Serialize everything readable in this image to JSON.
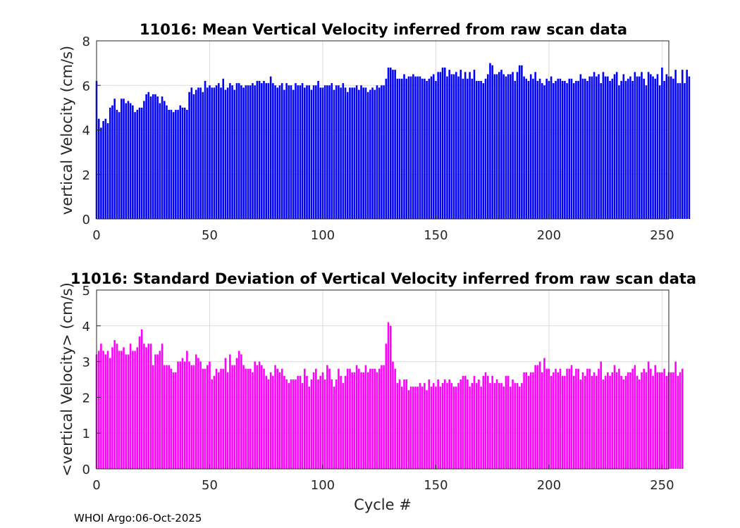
{
  "chart_data": [
    {
      "type": "bar",
      "title": "11016: Mean Vertical Velocity inferred from raw scan data",
      "xlabel": "",
      "ylabel": "vertical Velocity (cm/s)",
      "xlim": [
        0,
        253
      ],
      "ylim": [
        0,
        8
      ],
      "xticks": [
        "0",
        "50",
        "100",
        "150",
        "200",
        "250"
      ],
      "yticks": [
        "0",
        "2",
        "4",
        "6",
        "8"
      ],
      "grid": true,
      "color": "#0000FF",
      "values": [
        6.2,
        4.5,
        4.1,
        4.4,
        4.5,
        4.3,
        5.0,
        5.1,
        5.4,
        4.9,
        4.8,
        5.4,
        5.4,
        5.2,
        5.3,
        5.2,
        5.1,
        4.8,
        4.9,
        5.0,
        5.0,
        5.3,
        5.6,
        5.7,
        5.5,
        5.6,
        5.6,
        5.5,
        5.2,
        5.5,
        5.3,
        5.1,
        4.9,
        4.9,
        4.8,
        4.9,
        4.9,
        5.1,
        5.0,
        5.0,
        4.9,
        5.7,
        5.9,
        5.6,
        5.8,
        5.9,
        5.9,
        5.7,
        6.2,
        5.9,
        6.0,
        5.9,
        5.9,
        6.0,
        6.1,
        5.9,
        6.3,
        5.8,
        5.9,
        6.1,
        6.0,
        5.8,
        6.1,
        6.1,
        6.0,
        5.9,
        6.0,
        6.0,
        6.0,
        6.1,
        6.0,
        6.2,
        6.2,
        6.1,
        6.2,
        6.1,
        6.1,
        6.4,
        6.1,
        6.0,
        5.9,
        6.0,
        6.1,
        5.8,
        6.1,
        6.0,
        6.0,
        5.8,
        6.1,
        6.0,
        6.0,
        6.1,
        5.9,
        6.0,
        6.0,
        5.8,
        6.0,
        6.0,
        6.2,
        5.9,
        5.9,
        6.0,
        6.0,
        6.0,
        6.1,
        5.8,
        6.0,
        6.0,
        5.9,
        6.1,
        5.9,
        5.7,
        5.9,
        5.9,
        5.9,
        6.0,
        5.8,
        6.0,
        5.9,
        5.9,
        5.7,
        5.8,
        5.9,
        5.8,
        6.0,
        5.9,
        6.0,
        6.0,
        6.3,
        6.8,
        6.8,
        6.7,
        6.7,
        6.3,
        6.3,
        6.3,
        6.5,
        6.3,
        6.4,
        6.4,
        6.5,
        6.4,
        6.4,
        6.4,
        6.3,
        6.3,
        6.2,
        6.3,
        6.4,
        6.5,
        6.2,
        6.6,
        6.6,
        6.8,
        6.8,
        6.4,
        6.7,
        6.5,
        6.5,
        6.6,
        6.4,
        6.7,
        6.3,
        6.6,
        6.3,
        6.6,
        6.3,
        6.7,
        6.2,
        6.2,
        6.2,
        6.1,
        6.3,
        6.5,
        7.0,
        6.9,
        6.5,
        6.5,
        6.6,
        6.7,
        6.5,
        6.4,
        6.5,
        6.5,
        6.6,
        6.2,
        6.6,
        6.9,
        6.9,
        6.4,
        6.3,
        6.2,
        6.5,
        6.3,
        6.6,
        6.2,
        6.3,
        6.1,
        6.0,
        6.3,
        6.2,
        6.4,
        6.1,
        6.2,
        6.3,
        6.3,
        6.2,
        6.2,
        6.1,
        6.3,
        6.3,
        6.1,
        6.2,
        6.2,
        6.5,
        6.3,
        6.3,
        6.2,
        6.4,
        6.4,
        6.6,
        6.4,
        6.5,
        6.1,
        6.6,
        6.4,
        6.4,
        6.2,
        6.3,
        6.5,
        6.6,
        6.0,
        6.2,
        6.5,
        6.2,
        6.3,
        6.4,
        6.2,
        6.6,
        6.4,
        6.4,
        6.6,
        6.3,
        6.0,
        6.6,
        6.5,
        6.4,
        6.3,
        6.5,
        6.0,
        6.8,
        6.2,
        6.5,
        6.4,
        6.4,
        6.3,
        6.7,
        6.1,
        6.1,
        6.7,
        6.1,
        6.7,
        6.4
      ],
      "x_start": 0
    },
    {
      "type": "bar",
      "title": "11016: Standard Deviation of Vertical Velocity inferred from raw scan data",
      "xlabel": "Cycle #",
      "ylabel": "<vertical Velocity> (cm/s)",
      "xlim": [
        0,
        253
      ],
      "ylim": [
        0,
        5
      ],
      "xticks": [
        "0",
        "50",
        "100",
        "150",
        "200",
        "250"
      ],
      "yticks": [
        "0",
        "1",
        "2",
        "3",
        "4",
        "5"
      ],
      "grid": true,
      "color": "#FF00FF",
      "values": [
        3.2,
        3.3,
        3.5,
        3.3,
        3.2,
        3.3,
        3.1,
        3.4,
        3.6,
        3.5,
        3.3,
        3.3,
        3.4,
        3.2,
        3.2,
        3.5,
        3.3,
        3.3,
        3.4,
        3.7,
        3.9,
        3.5,
        3.4,
        3.5,
        3.5,
        2.9,
        3.2,
        3.2,
        3.3,
        3.5,
        2.9,
        2.9,
        2.9,
        2.8,
        2.7,
        2.7,
        3.0,
        3.0,
        3.1,
        3.0,
        3.3,
        3.0,
        2.9,
        2.9,
        3.2,
        3.1,
        3.0,
        2.8,
        2.8,
        2.9,
        3.0,
        2.5,
        2.6,
        2.8,
        2.7,
        2.8,
        2.8,
        3.1,
        2.7,
        3.2,
        2.9,
        2.9,
        3.1,
        3.3,
        3.2,
        2.9,
        2.8,
        2.8,
        2.8,
        2.7,
        3.0,
        2.9,
        3.0,
        2.9,
        2.8,
        2.6,
        2.5,
        2.7,
        2.6,
        2.9,
        2.8,
        2.7,
        2.8,
        2.6,
        2.5,
        2.4,
        2.5,
        2.5,
        2.5,
        2.6,
        2.6,
        2.4,
        2.8,
        2.6,
        2.3,
        2.5,
        2.7,
        2.8,
        2.5,
        2.6,
        2.7,
        2.5,
        2.9,
        2.8,
        2.5,
        2.3,
        2.5,
        2.8,
        2.6,
        2.4,
        2.6,
        2.8,
        2.8,
        2.7,
        2.7,
        2.9,
        2.8,
        2.7,
        2.7,
        2.9,
        2.7,
        2.8,
        2.8,
        2.8,
        2.7,
        2.8,
        2.9,
        2.9,
        3.5,
        4.1,
        4.0,
        3.0,
        2.8,
        2.4,
        2.5,
        2.3,
        2.5,
        2.5,
        2.2,
        2.3,
        2.3,
        2.3,
        2.3,
        2.4,
        2.3,
        2.4,
        2.2,
        2.5,
        2.3,
        2.4,
        2.3,
        2.5,
        2.3,
        2.4,
        2.5,
        2.4,
        2.5,
        2.4,
        2.3,
        2.3,
        2.4,
        2.5,
        2.6,
        2.6,
        2.5,
        2.3,
        2.4,
        2.6,
        2.4,
        2.5,
        2.3,
        2.6,
        2.7,
        2.6,
        2.4,
        2.6,
        2.4,
        2.5,
        2.4,
        2.4,
        2.3,
        2.6,
        2.6,
        2.3,
        2.5,
        2.4,
        2.4,
        2.3,
        2.4,
        2.7,
        2.7,
        2.6,
        2.7,
        2.7,
        2.9,
        2.9,
        3.0,
        2.7,
        3.1,
        2.8,
        2.8,
        2.6,
        2.7,
        2.8,
        2.7,
        2.8,
        2.6,
        2.6,
        2.8,
        2.8,
        2.9,
        2.6,
        2.8,
        2.8,
        2.5,
        2.7,
        2.6,
        2.8,
        2.8,
        2.6,
        2.7,
        2.6,
        2.8,
        3.0,
        2.5,
        2.6,
        2.7,
        2.6,
        2.7,
        2.9,
        2.7,
        2.8,
        2.6,
        2.5,
        2.6,
        2.7,
        2.7,
        2.8,
        2.9,
        2.6,
        2.5,
        2.7,
        2.8,
        2.7,
        3.0,
        2.8,
        2.6,
        2.9,
        2.7,
        2.7,
        2.7,
        2.8,
        2.6,
        2.7,
        2.7,
        2.7,
        3.0,
        2.6,
        2.7,
        2.8
      ]
    }
  ],
  "footer": "WHOI Argo:06-Oct-2025"
}
